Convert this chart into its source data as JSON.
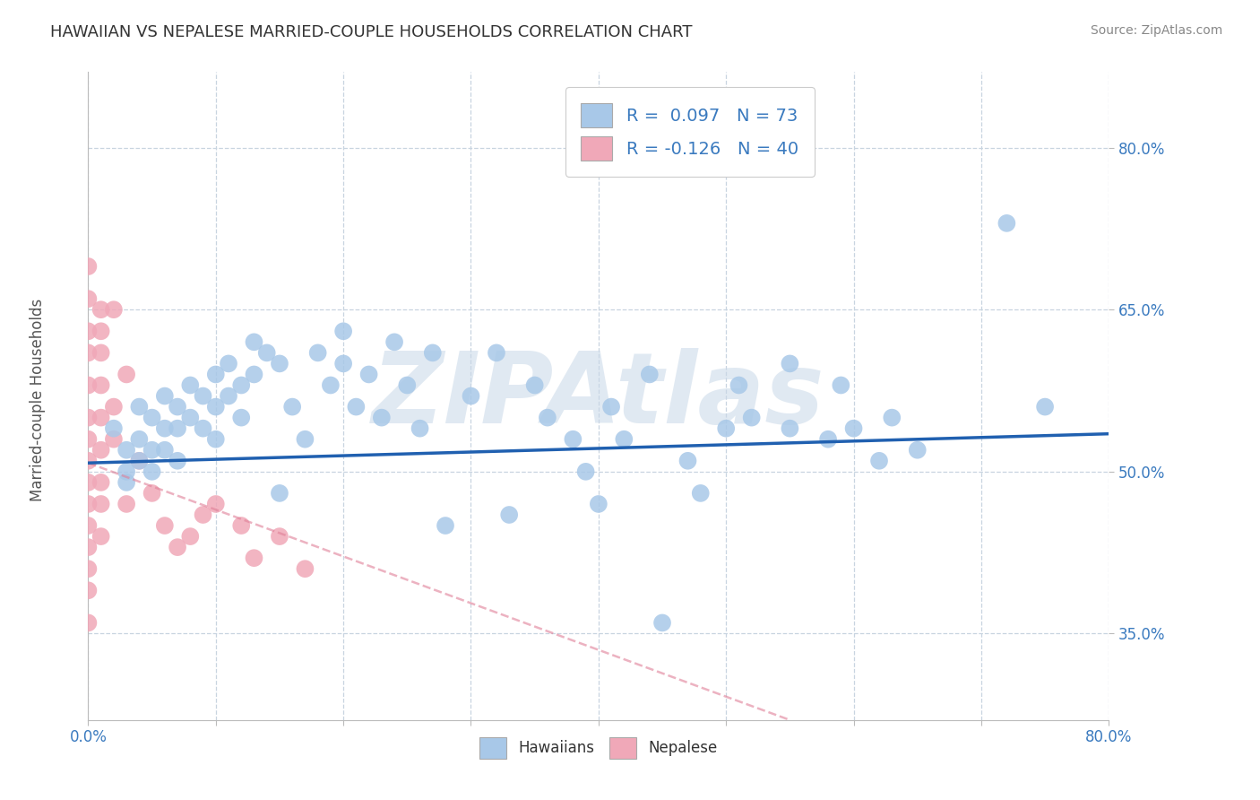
{
  "title": "HAWAIIAN VS NEPALESE MARRIED-COUPLE HOUSEHOLDS CORRELATION CHART",
  "source_text": "Source: ZipAtlas.com",
  "xlabel": "",
  "ylabel": "Married-couple Households",
  "xlim": [
    0.0,
    0.8
  ],
  "ylim": [
    0.27,
    0.87
  ],
  "xticks": [
    0.0,
    0.1,
    0.2,
    0.3,
    0.4,
    0.5,
    0.6,
    0.7,
    0.8
  ],
  "xticklabels": [
    "0.0%",
    "",
    "",
    "",
    "",
    "",
    "",
    "",
    "80.0%"
  ],
  "yticks": [
    0.35,
    0.5,
    0.65,
    0.8
  ],
  "yticklabels": [
    "35.0%",
    "50.0%",
    "65.0%",
    "80.0%"
  ],
  "hawaiian_color": "#a8c8e8",
  "nepalese_color": "#f0a8b8",
  "hawaiian_line_color": "#2060b0",
  "nepalese_line_color": "#e08098",
  "R_hawaiian": 0.097,
  "N_hawaiian": 73,
  "R_nepalese": -0.126,
  "N_nepalese": 40,
  "watermark_text": "ZIPAtlas",
  "watermark_color": "#c8d8e8",
  "background_color": "#ffffff",
  "grid_color": "#c8d4e0",
  "hawaiian_scatter": [
    [
      0.02,
      0.54
    ],
    [
      0.03,
      0.52
    ],
    [
      0.03,
      0.5
    ],
    [
      0.03,
      0.49
    ],
    [
      0.04,
      0.56
    ],
    [
      0.04,
      0.53
    ],
    [
      0.04,
      0.51
    ],
    [
      0.05,
      0.55
    ],
    [
      0.05,
      0.52
    ],
    [
      0.05,
      0.5
    ],
    [
      0.06,
      0.57
    ],
    [
      0.06,
      0.54
    ],
    [
      0.06,
      0.52
    ],
    [
      0.07,
      0.56
    ],
    [
      0.07,
      0.54
    ],
    [
      0.07,
      0.51
    ],
    [
      0.08,
      0.58
    ],
    [
      0.08,
      0.55
    ],
    [
      0.09,
      0.57
    ],
    [
      0.09,
      0.54
    ],
    [
      0.1,
      0.59
    ],
    [
      0.1,
      0.56
    ],
    [
      0.1,
      0.53
    ],
    [
      0.11,
      0.6
    ],
    [
      0.11,
      0.57
    ],
    [
      0.12,
      0.58
    ],
    [
      0.12,
      0.55
    ],
    [
      0.13,
      0.62
    ],
    [
      0.13,
      0.59
    ],
    [
      0.14,
      0.61
    ],
    [
      0.15,
      0.6
    ],
    [
      0.15,
      0.48
    ],
    [
      0.16,
      0.56
    ],
    [
      0.17,
      0.53
    ],
    [
      0.18,
      0.61
    ],
    [
      0.19,
      0.58
    ],
    [
      0.2,
      0.63
    ],
    [
      0.2,
      0.6
    ],
    [
      0.21,
      0.56
    ],
    [
      0.22,
      0.59
    ],
    [
      0.23,
      0.55
    ],
    [
      0.24,
      0.62
    ],
    [
      0.25,
      0.58
    ],
    [
      0.26,
      0.54
    ],
    [
      0.27,
      0.61
    ],
    [
      0.28,
      0.45
    ],
    [
      0.3,
      0.57
    ],
    [
      0.32,
      0.61
    ],
    [
      0.33,
      0.46
    ],
    [
      0.35,
      0.58
    ],
    [
      0.36,
      0.55
    ],
    [
      0.38,
      0.53
    ],
    [
      0.39,
      0.5
    ],
    [
      0.4,
      0.47
    ],
    [
      0.41,
      0.56
    ],
    [
      0.42,
      0.53
    ],
    [
      0.44,
      0.59
    ],
    [
      0.45,
      0.36
    ],
    [
      0.47,
      0.51
    ],
    [
      0.48,
      0.48
    ],
    [
      0.5,
      0.54
    ],
    [
      0.51,
      0.58
    ],
    [
      0.52,
      0.55
    ],
    [
      0.55,
      0.6
    ],
    [
      0.55,
      0.54
    ],
    [
      0.58,
      0.53
    ],
    [
      0.59,
      0.58
    ],
    [
      0.6,
      0.54
    ],
    [
      0.62,
      0.51
    ],
    [
      0.63,
      0.55
    ],
    [
      0.65,
      0.52
    ],
    [
      0.75,
      0.56
    ],
    [
      0.72,
      0.73
    ]
  ],
  "nepalese_scatter": [
    [
      0.0,
      0.69
    ],
    [
      0.0,
      0.66
    ],
    [
      0.0,
      0.63
    ],
    [
      0.0,
      0.61
    ],
    [
      0.0,
      0.58
    ],
    [
      0.0,
      0.55
    ],
    [
      0.0,
      0.53
    ],
    [
      0.0,
      0.51
    ],
    [
      0.0,
      0.49
    ],
    [
      0.0,
      0.47
    ],
    [
      0.0,
      0.45
    ],
    [
      0.0,
      0.43
    ],
    [
      0.0,
      0.41
    ],
    [
      0.0,
      0.39
    ],
    [
      0.0,
      0.36
    ],
    [
      0.01,
      0.65
    ],
    [
      0.01,
      0.63
    ],
    [
      0.01,
      0.61
    ],
    [
      0.01,
      0.58
    ],
    [
      0.01,
      0.55
    ],
    [
      0.01,
      0.52
    ],
    [
      0.01,
      0.49
    ],
    [
      0.01,
      0.47
    ],
    [
      0.01,
      0.44
    ],
    [
      0.02,
      0.65
    ],
    [
      0.02,
      0.56
    ],
    [
      0.02,
      0.53
    ],
    [
      0.03,
      0.59
    ],
    [
      0.03,
      0.47
    ],
    [
      0.04,
      0.51
    ],
    [
      0.05,
      0.48
    ],
    [
      0.06,
      0.45
    ],
    [
      0.07,
      0.43
    ],
    [
      0.08,
      0.44
    ],
    [
      0.09,
      0.46
    ],
    [
      0.1,
      0.47
    ],
    [
      0.12,
      0.45
    ],
    [
      0.13,
      0.42
    ],
    [
      0.15,
      0.44
    ],
    [
      0.17,
      0.41
    ]
  ],
  "haw_trend_x": [
    0.0,
    0.8
  ],
  "haw_trend_y": [
    0.508,
    0.535
  ],
  "nep_trend_x": [
    0.0,
    0.55
  ],
  "nep_trend_y": [
    0.508,
    0.27
  ]
}
